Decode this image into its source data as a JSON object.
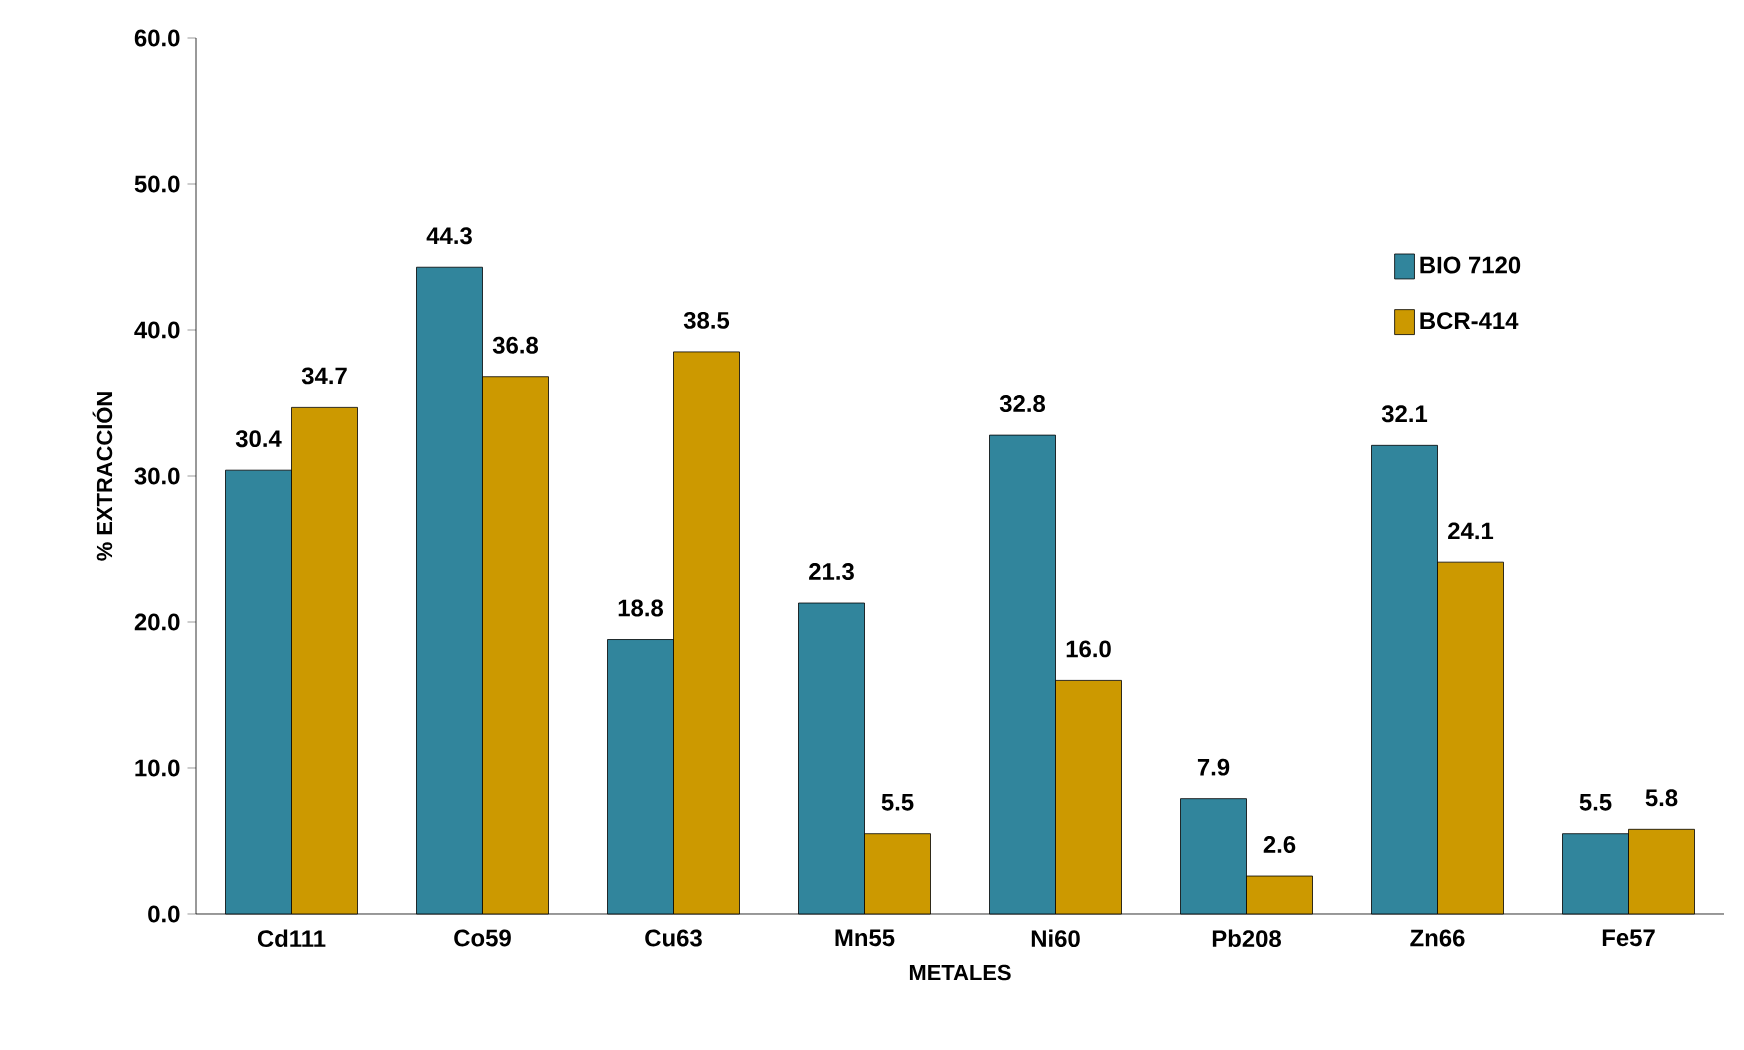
{
  "chart_data": {
    "type": "bar",
    "xlabel": "METALES",
    "ylabel": "% EXTRACCIÓN",
    "categories": [
      "Cd111",
      "Co59",
      "Cu63",
      "Mn55",
      "Ni60",
      "Pb208",
      "Zn66",
      "Fe57"
    ],
    "series": [
      {
        "name": "BIO 7120",
        "color": "#31859c",
        "values": [
          30.4,
          44.3,
          18.8,
          21.3,
          32.8,
          7.9,
          32.1,
          5.5
        ],
        "value_labels": [
          "30.4",
          "44.3",
          "18.8",
          "21.3",
          "32.8",
          "7.9",
          "32.1",
          "5.5"
        ]
      },
      {
        "name": "BCR-414",
        "color": "#cc9900",
        "values": [
          34.7,
          36.8,
          38.5,
          5.5,
          16.0,
          2.6,
          24.1,
          5.8
        ],
        "value_labels": [
          "34.7",
          "36.8",
          "38.5",
          "5.5",
          "16.0",
          "2.6",
          "24.1",
          "5.8"
        ]
      }
    ],
    "ylim": [
      0,
      60
    ],
    "yticks": [
      {
        "value": 0,
        "label": "0.0"
      },
      {
        "value": 10,
        "label": "10.0"
      },
      {
        "value": 20,
        "label": "20.0"
      },
      {
        "value": 30,
        "label": "30.0"
      },
      {
        "value": 40,
        "label": "40.0"
      },
      {
        "value": 50,
        "label": "50.0"
      },
      {
        "value": 60,
        "label": "60.0"
      }
    ],
    "grid": false,
    "legend": "top right"
  }
}
